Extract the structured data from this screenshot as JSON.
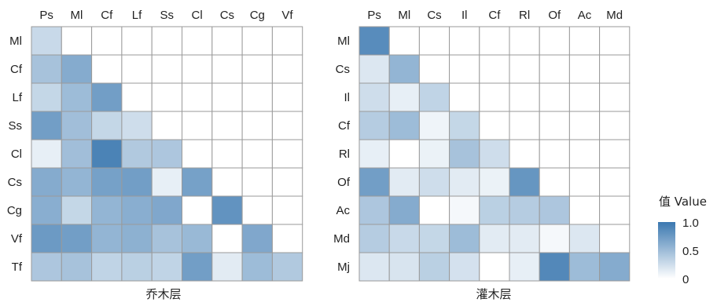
{
  "chart_data": [
    {
      "type": "heatmap",
      "caption": "乔木层",
      "x_labels": [
        "Ps",
        "Ml",
        "Cf",
        "Lf",
        "Ss",
        "Cl",
        "Cs",
        "Cg",
        "Vf"
      ],
      "y_labels": [
        "Ml",
        "Cf",
        "Lf",
        "Ss",
        "Cl",
        "Cs",
        "Cg",
        "Vf",
        "Tf"
      ],
      "values": [
        [
          0.28
        ],
        [
          0.45,
          0.62
        ],
        [
          0.3,
          0.5,
          0.72
        ],
        [
          0.72,
          0.48,
          0.3,
          0.25
        ],
        [
          0.12,
          0.48,
          0.92,
          0.4,
          0.42
        ],
        [
          0.62,
          0.55,
          0.7,
          0.72,
          0.12,
          0.7
        ],
        [
          0.6,
          0.3,
          0.55,
          0.6,
          0.65,
          0.0,
          0.8
        ],
        [
          0.75,
          0.72,
          0.55,
          0.58,
          0.45,
          0.52,
          0.0,
          0.65
        ],
        [
          0.42,
          0.45,
          0.32,
          0.35,
          0.32,
          0.72,
          0.15,
          0.5,
          0.4
        ]
      ]
    },
    {
      "type": "heatmap",
      "caption": "灌木层",
      "x_labels": [
        "Ps",
        "Ml",
        "Cs",
        "Il",
        "Cf",
        "Rl",
        "Of",
        "Ac",
        "Md"
      ],
      "y_labels": [
        "Ml",
        "Cs",
        "Il",
        "Cf",
        "Rl",
        "Of",
        "Ac",
        "Md",
        "Mj"
      ],
      "values": [
        [
          0.85
        ],
        [
          0.18,
          0.55
        ],
        [
          0.25,
          0.12,
          0.32
        ],
        [
          0.38,
          0.5,
          0.08,
          0.3
        ],
        [
          0.12,
          0.0,
          0.1,
          0.45,
          0.25
        ],
        [
          0.72,
          0.15,
          0.25,
          0.15,
          0.1,
          0.78
        ],
        [
          0.42,
          0.62,
          0.0,
          0.05,
          0.35,
          0.38,
          0.42
        ],
        [
          0.38,
          0.28,
          0.3,
          0.5,
          0.15,
          0.15,
          0.05,
          0.18
        ],
        [
          0.18,
          0.2,
          0.35,
          0.22,
          0.0,
          0.12,
          0.88,
          0.5,
          0.62
        ]
      ]
    }
  ],
  "legend": {
    "title": "值 Value",
    "ticks": [
      {
        "value": 1.0,
        "label": "1.0"
      },
      {
        "value": 0.5,
        "label": "0.5"
      },
      {
        "value": 0,
        "label": "0"
      }
    ],
    "low_color": "#ffffff",
    "high_color": "#3b78b0"
  }
}
